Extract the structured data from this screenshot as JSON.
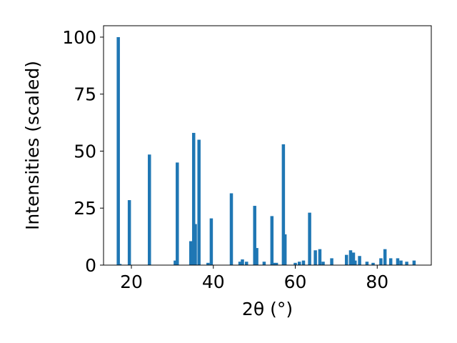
{
  "chart_data": {
    "type": "bar",
    "title": "",
    "xlabel": "2θ (°)",
    "ylabel": "Intensities (scaled)",
    "xlim": [
      13.2,
      93.2
    ],
    "ylim": [
      0,
      105
    ],
    "xticks": [
      20,
      40,
      60,
      80
    ],
    "yticks": [
      0,
      25,
      50,
      75,
      100
    ],
    "grid": false,
    "legend": "none",
    "bar_color": "#1f77b4",
    "x": [
      16.8,
      17.2,
      19.5,
      24.4,
      30.7,
      31.2,
      34.5,
      35.2,
      35.6,
      36.5,
      38.7,
      39.5,
      44.4,
      46.5,
      47.1,
      48.1,
      50.1,
      50.6,
      52.4,
      54.3,
      54.7,
      55.4,
      57.1,
      57.5,
      60.0,
      61.0,
      62.0,
      63.5,
      64.9,
      66.0,
      66.8,
      68.9,
      72.5,
      73.5,
      74.2,
      74.6,
      75.7,
      77.5,
      79.0,
      80.9,
      81.9,
      83.3,
      85.0,
      85.8,
      87.2,
      89.0
    ],
    "values": [
      100,
      0.5,
      28.5,
      48.5,
      2,
      45,
      10.5,
      58,
      18,
      55,
      1,
      20.5,
      31.5,
      1.5,
      2.5,
      1.5,
      26,
      7.5,
      1.5,
      21.5,
      1,
      1,
      53,
      13.5,
      1,
      1.5,
      2,
      23,
      6.5,
      7,
      1.5,
      3,
      4.5,
      6.5,
      5.5,
      2,
      4,
      1.5,
      1,
      3,
      7,
      3,
      3,
      2,
      1.5,
      2
    ]
  }
}
